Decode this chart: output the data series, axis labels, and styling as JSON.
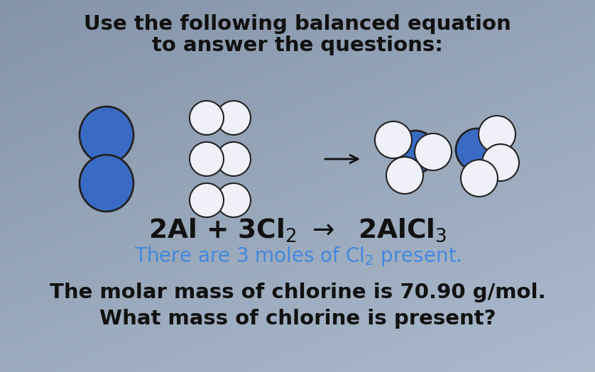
{
  "title_line1": "Use the following balanced equation",
  "title_line2": "to answer the questions:",
  "blue_text": "There are 3 moles of Cl$_2$ present.",
  "bottom_line1": "The molar mass of chlorine is 70.90 g/mol.",
  "bottom_line2": "What mass of chlorine is present?",
  "bg_color": "#8a96aa",
  "bg_color_light": "#aab8cc",
  "title_color": "#111111",
  "equation_color": "#111111",
  "blue_text_color": "#4488dd",
  "bottom_color": "#111111",
  "al_color": "#3a6bc4",
  "cl_color": "#f0f0f8",
  "molecule_edge_color": "#222222",
  "fig_w": 8.38,
  "fig_h": 5.24,
  "dpi": 100
}
